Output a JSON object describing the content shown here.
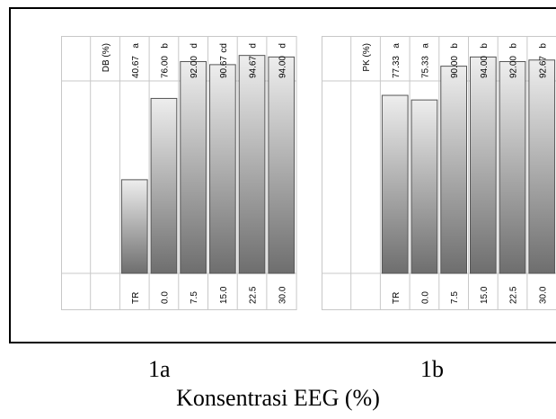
{
  "chart_data": [
    {
      "type": "bar",
      "panel": "1a",
      "ylabel": "DB (%)",
      "categories": [
        "TR",
        "0.0",
        "7.5",
        "15.0",
        "22.5",
        "30.0"
      ],
      "values": [
        40.67,
        76.0,
        92.0,
        90.67,
        94.67,
        94.0
      ],
      "value_labels": [
        "40.67",
        "76.00",
        "92.00",
        "90.67",
        "94.67",
        "94.00"
      ],
      "letters": [
        "a",
        "b",
        "d",
        "cd",
        "d",
        "d"
      ],
      "ylim": [
        0,
        100
      ],
      "bar_color": "gray-gradient"
    },
    {
      "type": "bar",
      "panel": "1b",
      "ylabel": "PK (%)",
      "categories": [
        "TR",
        "0.0",
        "7.5",
        "15.0",
        "22.5",
        "30.0"
      ],
      "values": [
        77.33,
        75.33,
        90.0,
        94.0,
        92.0,
        92.67
      ],
      "value_labels": [
        "77.33",
        "75.33",
        "90.00",
        "94.00",
        "92.00",
        "92.67"
      ],
      "letters": [
        "a",
        "a",
        "b",
        "b",
        "b",
        "b"
      ],
      "ylim": [
        0,
        100
      ],
      "bar_color": "gray-gradient"
    }
  ],
  "captions": {
    "panel_1a": "1a",
    "panel_1b": "1b",
    "x_title": "Konsentrasi EEG (%)"
  }
}
